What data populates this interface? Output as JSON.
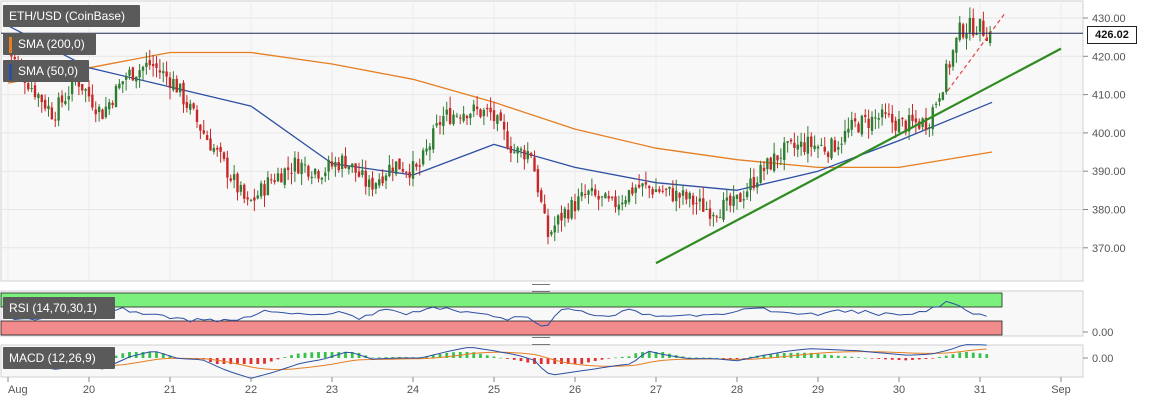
{
  "legends": {
    "symbol": "ETH/USD (CoinBase)",
    "sma200": "SMA (200,0)",
    "sma50": "SMA (50,0)",
    "rsi": "RSI (14,70,30,1)",
    "macd": "MACD (12,26,9)"
  },
  "price_badge": "426.02",
  "colors": {
    "up": "#2e7d32",
    "down": "#c62828",
    "sma200": "#e67e22",
    "sma50": "#2c4fa3",
    "trendline": "#2e8b1f",
    "rsi_line": "#2c4fa3",
    "rsi_upper_zone": "#7cf07c",
    "rsi_lower_zone": "#f28b8b",
    "macd_line": "#2c4fa3",
    "signal_line": "#e67e22",
    "hist_pos": "#36c24a",
    "hist_neg": "#e03030"
  },
  "chart_data": {
    "type": "candlestick",
    "title": "ETH/USD (CoinBase)",
    "x_ticks": [
      "Aug",
      "20",
      "21",
      "22",
      "23",
      "24",
      "25",
      "26",
      "27",
      "28",
      "29",
      "30",
      "31",
      "Sep"
    ],
    "y_ticks": [
      "430.00",
      "420.00",
      "410.00",
      "400.00",
      "390.00",
      "380.00",
      "370.00"
    ],
    "ylim": [
      362,
      432
    ],
    "current_price": 426.02,
    "rsi_ticks": [
      "0.00"
    ],
    "macd_ticks": [
      "0.00"
    ],
    "close_series": [
      {
        "day": 19.0,
        "close": 423
      },
      {
        "day": 19.3,
        "close": 413
      },
      {
        "day": 19.6,
        "close": 405
      },
      {
        "day": 19.9,
        "close": 414
      },
      {
        "day": 20.2,
        "close": 405
      },
      {
        "day": 20.5,
        "close": 415
      },
      {
        "day": 20.8,
        "close": 418
      },
      {
        "day": 21.1,
        "close": 413
      },
      {
        "day": 21.4,
        "close": 402
      },
      {
        "day": 21.7,
        "close": 392
      },
      {
        "day": 22.0,
        "close": 381
      },
      {
        "day": 22.3,
        "close": 388
      },
      {
        "day": 22.6,
        "close": 392
      },
      {
        "day": 22.9,
        "close": 390
      },
      {
        "day": 23.2,
        "close": 393
      },
      {
        "day": 23.5,
        "close": 386
      },
      {
        "day": 23.8,
        "close": 392
      },
      {
        "day": 24.1,
        "close": 390
      },
      {
        "day": 24.4,
        "close": 404
      },
      {
        "day": 24.7,
        "close": 406
      },
      {
        "day": 25.0,
        "close": 405
      },
      {
        "day": 25.3,
        "close": 395
      },
      {
        "day": 25.5,
        "close": 395
      },
      {
        "day": 25.7,
        "close": 373
      },
      {
        "day": 25.9,
        "close": 379
      },
      {
        "day": 26.2,
        "close": 384
      },
      {
        "day": 26.5,
        "close": 381
      },
      {
        "day": 26.8,
        "close": 386
      },
      {
        "day": 27.1,
        "close": 385
      },
      {
        "day": 27.4,
        "close": 383
      },
      {
        "day": 27.7,
        "close": 380
      },
      {
        "day": 28.0,
        "close": 381
      },
      {
        "day": 28.3,
        "close": 389
      },
      {
        "day": 28.6,
        "close": 395
      },
      {
        "day": 28.9,
        "close": 397
      },
      {
        "day": 29.2,
        "close": 396
      },
      {
        "day": 29.5,
        "close": 402
      },
      {
        "day": 29.8,
        "close": 404
      },
      {
        "day": 30.1,
        "close": 402
      },
      {
        "day": 30.4,
        "close": 403
      },
      {
        "day": 30.6,
        "close": 414
      },
      {
        "day": 30.8,
        "close": 427
      },
      {
        "day": 31.0,
        "close": 428
      },
      {
        "day": 31.15,
        "close": 426
      }
    ],
    "sma200": [
      {
        "day": 19.0,
        "value": 413
      },
      {
        "day": 20.0,
        "value": 417
      },
      {
        "day": 21.0,
        "value": 421
      },
      {
        "day": 22.0,
        "value": 421
      },
      {
        "day": 23.0,
        "value": 418
      },
      {
        "day": 24.0,
        "value": 414
      },
      {
        "day": 25.0,
        "value": 408
      },
      {
        "day": 26.0,
        "value": 401
      },
      {
        "day": 27.0,
        "value": 396
      },
      {
        "day": 28.0,
        "value": 393
      },
      {
        "day": 29.0,
        "value": 391
      },
      {
        "day": 30.0,
        "value": 391
      },
      {
        "day": 31.15,
        "value": 395
      }
    ],
    "sma50": [
      {
        "day": 19.0,
        "value": 428
      },
      {
        "day": 20.0,
        "value": 417
      },
      {
        "day": 21.0,
        "value": 412
      },
      {
        "day": 22.0,
        "value": 407
      },
      {
        "day": 23.0,
        "value": 392
      },
      {
        "day": 24.0,
        "value": 389
      },
      {
        "day": 25.0,
        "value": 397
      },
      {
        "day": 26.0,
        "value": 391
      },
      {
        "day": 27.0,
        "value": 387
      },
      {
        "day": 28.0,
        "value": 385
      },
      {
        "day": 29.0,
        "value": 390
      },
      {
        "day": 30.0,
        "value": 398
      },
      {
        "day": 31.15,
        "value": 408
      }
    ],
    "trendline": [
      {
        "day": 27.0,
        "value": 366
      },
      {
        "day": 32.0,
        "value": 422
      }
    ],
    "trend_extension": [
      {
        "day": 30.6,
        "value": 411
      },
      {
        "day": 31.3,
        "value": 431
      }
    ]
  }
}
